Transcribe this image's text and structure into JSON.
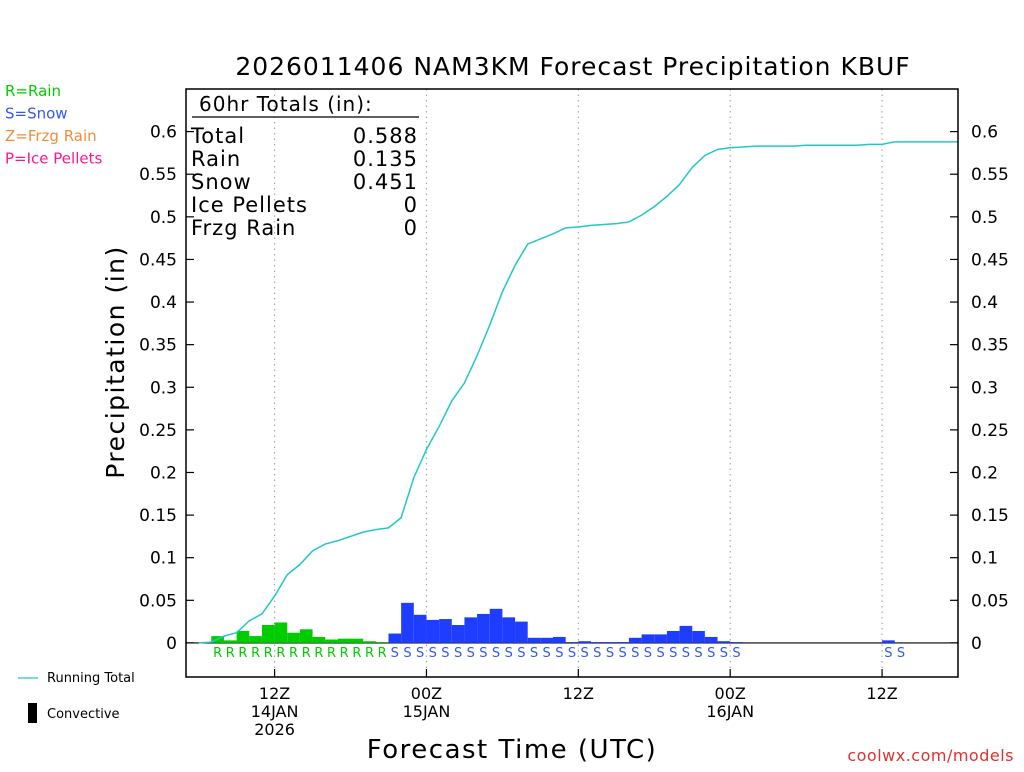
{
  "chart_data": {
    "type": "bar",
    "title": "2026011406 NAM3KM Forecast Precipitation KBUF",
    "ylabel": "Precipitation (in)",
    "xlabel": "Forecast Time (UTC)",
    "ylim": [
      -0.04,
      0.65
    ],
    "xlim_hours_from_start": [
      -1,
      60
    ],
    "yticks": [
      "0",
      "0.05",
      "0.1",
      "0.15",
      "0.2",
      "0.25",
      "0.3",
      "0.35",
      "0.4",
      "0.45",
      "0.5",
      "0.55",
      "0.6"
    ],
    "ytick_values": [
      0,
      0.05,
      0.1,
      0.15,
      0.2,
      0.25,
      0.3,
      0.35,
      0.4,
      0.45,
      0.5,
      0.55,
      0.6
    ],
    "xticks": [
      {
        "hour": 6,
        "lines": [
          "12Z",
          "14JAN",
          "2026"
        ]
      },
      {
        "hour": 18,
        "lines": [
          "00Z",
          "15JAN"
        ]
      },
      {
        "hour": 30,
        "lines": [
          "12Z"
        ]
      },
      {
        "hour": 42,
        "lines": [
          "00Z",
          "16JAN"
        ]
      },
      {
        "hour": 54,
        "lines": [
          "12Z"
        ]
      }
    ],
    "grid_vertical_hours": [
      6,
      18,
      30,
      42,
      54
    ],
    "ptype_legend": [
      {
        "text": "R=Rain",
        "color": "#00cc00"
      },
      {
        "text": "S=Snow",
        "color": "#3355ff"
      },
      {
        "text": "Z=Frzg Rain",
        "color": "#f08c3c"
      },
      {
        "text": "P=Ice Pellets",
        "color": "#ff1493"
      }
    ],
    "series_legend": {
      "running_total": "Running Total",
      "convective": "Convective"
    },
    "totals_box": {
      "header": "60hr Totals (in):",
      "rows": [
        {
          "label": "Total",
          "value": "0.588"
        },
        {
          "label": "Rain",
          "value": "0.135"
        },
        {
          "label": "Snow",
          "value": "0.451"
        },
        {
          "label": "Ice Pellets",
          "value": "0"
        },
        {
          "label": "Frzg Rain",
          "value": "0"
        }
      ]
    },
    "bars": [
      {
        "hour": 1,
        "value": 0.0,
        "type": "R"
      },
      {
        "hour": 2,
        "value": 0.008,
        "type": "R"
      },
      {
        "hour": 3,
        "value": 0.003,
        "type": "R"
      },
      {
        "hour": 4,
        "value": 0.014,
        "type": "R"
      },
      {
        "hour": 5,
        "value": 0.008,
        "type": "R"
      },
      {
        "hour": 6,
        "value": 0.021,
        "type": "R"
      },
      {
        "hour": 7,
        "value": 0.024,
        "type": "R"
      },
      {
        "hour": 8,
        "value": 0.012,
        "type": "R"
      },
      {
        "hour": 9,
        "value": 0.016,
        "type": "R"
      },
      {
        "hour": 10,
        "value": 0.007,
        "type": "R"
      },
      {
        "hour": 11,
        "value": 0.004,
        "type": "R"
      },
      {
        "hour": 12,
        "value": 0.005,
        "type": "R"
      },
      {
        "hour": 13,
        "value": 0.005,
        "type": "R"
      },
      {
        "hour": 14,
        "value": 0.002,
        "type": "R"
      },
      {
        "hour": 15,
        "value": 0.001,
        "type": "R"
      },
      {
        "hour": 16,
        "value": 0.011,
        "type": "S"
      },
      {
        "hour": 17,
        "value": 0.047,
        "type": "S"
      },
      {
        "hour": 18,
        "value": 0.033,
        "type": "S"
      },
      {
        "hour": 19,
        "value": 0.027,
        "type": "S"
      },
      {
        "hour": 20,
        "value": 0.028,
        "type": "S"
      },
      {
        "hour": 21,
        "value": 0.021,
        "type": "S"
      },
      {
        "hour": 22,
        "value": 0.03,
        "type": "S"
      },
      {
        "hour": 23,
        "value": 0.034,
        "type": "S"
      },
      {
        "hour": 24,
        "value": 0.04,
        "type": "S"
      },
      {
        "hour": 25,
        "value": 0.03,
        "type": "S"
      },
      {
        "hour": 26,
        "value": 0.025,
        "type": "S"
      },
      {
        "hour": 27,
        "value": 0.006,
        "type": "S"
      },
      {
        "hour": 28,
        "value": 0.006,
        "type": "S"
      },
      {
        "hour": 29,
        "value": 0.007,
        "type": "S"
      },
      {
        "hour": 30,
        "value": 0.001,
        "type": "S"
      },
      {
        "hour": 31,
        "value": 0.002,
        "type": "S"
      },
      {
        "hour": 32,
        "value": 0.001,
        "type": "S"
      },
      {
        "hour": 33,
        "value": 0.001,
        "type": "S"
      },
      {
        "hour": 34,
        "value": 0.001,
        "type": "S"
      },
      {
        "hour": 35,
        "value": 0.006,
        "type": "S"
      },
      {
        "hour": 36,
        "value": 0.01,
        "type": "S"
      },
      {
        "hour": 37,
        "value": 0.01,
        "type": "S"
      },
      {
        "hour": 38,
        "value": 0.014,
        "type": "S"
      },
      {
        "hour": 39,
        "value": 0.02,
        "type": "S"
      },
      {
        "hour": 40,
        "value": 0.014,
        "type": "S"
      },
      {
        "hour": 41,
        "value": 0.007,
        "type": "S"
      },
      {
        "hour": 42,
        "value": 0.002,
        "type": "S"
      },
      {
        "hour": 43,
        "value": 0.001,
        "type": "S"
      },
      {
        "hour": 55,
        "value": 0.003,
        "type": "S"
      }
    ],
    "running_total": [
      [
        0,
        0.0
      ],
      [
        1,
        0.001
      ],
      [
        2,
        0.008
      ],
      [
        3,
        0.012
      ],
      [
        4,
        0.026
      ],
      [
        5,
        0.034
      ],
      [
        6,
        0.055
      ],
      [
        7,
        0.08
      ],
      [
        8,
        0.092
      ],
      [
        9,
        0.108
      ],
      [
        10,
        0.116
      ],
      [
        11,
        0.12
      ],
      [
        12,
        0.125
      ],
      [
        13,
        0.13
      ],
      [
        14,
        0.133
      ],
      [
        15,
        0.135
      ],
      [
        16,
        0.147
      ],
      [
        17,
        0.194
      ],
      [
        18,
        0.227
      ],
      [
        19,
        0.254
      ],
      [
        20,
        0.284
      ],
      [
        21,
        0.305
      ],
      [
        22,
        0.337
      ],
      [
        23,
        0.373
      ],
      [
        24,
        0.412
      ],
      [
        25,
        0.443
      ],
      [
        26,
        0.468
      ],
      [
        27,
        0.474
      ],
      [
        28,
        0.48
      ],
      [
        29,
        0.487
      ],
      [
        30,
        0.488
      ],
      [
        31,
        0.49
      ],
      [
        32,
        0.491
      ],
      [
        33,
        0.492
      ],
      [
        34,
        0.494
      ],
      [
        35,
        0.502
      ],
      [
        36,
        0.512
      ],
      [
        37,
        0.524
      ],
      [
        38,
        0.538
      ],
      [
        39,
        0.558
      ],
      [
        40,
        0.572
      ],
      [
        41,
        0.579
      ],
      [
        42,
        0.581
      ],
      [
        43,
        0.582
      ],
      [
        44,
        0.583
      ],
      [
        45,
        0.583
      ],
      [
        46,
        0.583
      ],
      [
        47,
        0.583
      ],
      [
        48,
        0.584
      ],
      [
        49,
        0.584
      ],
      [
        50,
        0.584
      ],
      [
        51,
        0.584
      ],
      [
        52,
        0.584
      ],
      [
        53,
        0.585
      ],
      [
        54,
        0.585
      ],
      [
        55,
        0.588
      ],
      [
        56,
        0.588
      ],
      [
        57,
        0.588
      ],
      [
        58,
        0.588
      ],
      [
        59,
        0.588
      ],
      [
        60,
        0.588
      ]
    ],
    "ptype_codes": [
      {
        "hour": 2,
        "code": "R"
      },
      {
        "hour": 3,
        "code": "R"
      },
      {
        "hour": 4,
        "code": "R"
      },
      {
        "hour": 5,
        "code": "R"
      },
      {
        "hour": 6,
        "code": "R"
      },
      {
        "hour": 7,
        "code": "R"
      },
      {
        "hour": 8,
        "code": "R"
      },
      {
        "hour": 9,
        "code": "R"
      },
      {
        "hour": 10,
        "code": "R"
      },
      {
        "hour": 11,
        "code": "R"
      },
      {
        "hour": 12,
        "code": "R"
      },
      {
        "hour": 13,
        "code": "R"
      },
      {
        "hour": 14,
        "code": "R"
      },
      {
        "hour": 15,
        "code": "R"
      },
      {
        "hour": 16,
        "code": "S"
      },
      {
        "hour": 17,
        "code": "S"
      },
      {
        "hour": 18,
        "code": "S"
      },
      {
        "hour": 19,
        "code": "S"
      },
      {
        "hour": 20,
        "code": "S"
      },
      {
        "hour": 21,
        "code": "S"
      },
      {
        "hour": 22,
        "code": "S"
      },
      {
        "hour": 23,
        "code": "S"
      },
      {
        "hour": 24,
        "code": "S"
      },
      {
        "hour": 25,
        "code": "S"
      },
      {
        "hour": 26,
        "code": "S"
      },
      {
        "hour": 27,
        "code": "S"
      },
      {
        "hour": 28,
        "code": "S"
      },
      {
        "hour": 29,
        "code": "S"
      },
      {
        "hour": 30,
        "code": "S"
      },
      {
        "hour": 31,
        "code": "S"
      },
      {
        "hour": 32,
        "code": "S"
      },
      {
        "hour": 33,
        "code": "S"
      },
      {
        "hour": 34,
        "code": "S"
      },
      {
        "hour": 35,
        "code": "S"
      },
      {
        "hour": 36,
        "code": "S"
      },
      {
        "hour": 37,
        "code": "S"
      },
      {
        "hour": 38,
        "code": "S"
      },
      {
        "hour": 39,
        "code": "S"
      },
      {
        "hour": 40,
        "code": "S"
      },
      {
        "hour": 41,
        "code": "S"
      },
      {
        "hour": 42,
        "code": "S"
      },
      {
        "hour": 43,
        "code": "S"
      },
      {
        "hour": 55,
        "code": "S"
      },
      {
        "hour": 56,
        "code": "S"
      }
    ],
    "colors": {
      "rain": "#00cc00",
      "snow": "#1f3dff",
      "running_total": "#22c8c8",
      "axis": "#000000",
      "grid": "#aaaaaa",
      "code_rain": "#00cc00",
      "code_snow": "#3355ff",
      "credit": "#e03030"
    },
    "credit": "coolwx.com/models"
  }
}
